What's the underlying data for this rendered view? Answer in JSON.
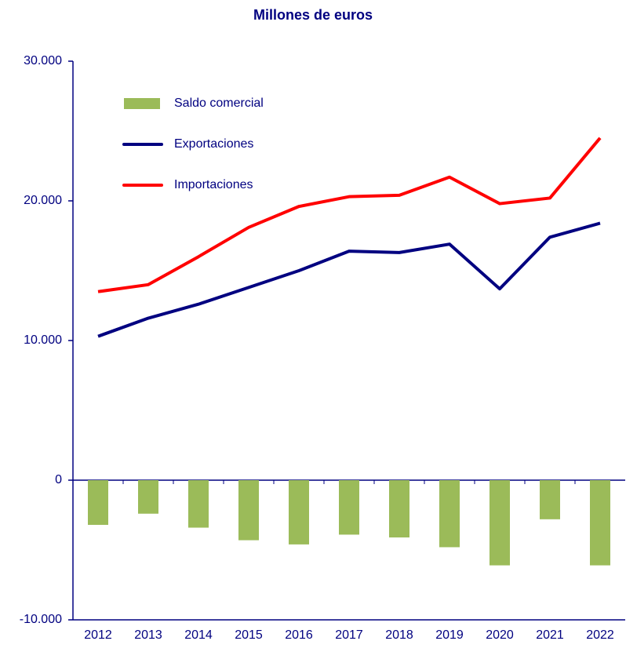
{
  "chart_data": {
    "type": "bar-line",
    "title": "Millones de euros",
    "categories": [
      "2012",
      "2013",
      "2014",
      "2015",
      "2016",
      "2017",
      "2018",
      "2019",
      "2020",
      "2021",
      "2022"
    ],
    "series": [
      {
        "name": "Saldo comercial",
        "type": "bar",
        "color": "#9bbb59",
        "values": [
          -3200,
          -2400,
          -3400,
          -4300,
          -4600,
          -3900,
          -4100,
          -4800,
          -6100,
          -2800,
          -6100
        ]
      },
      {
        "name": "Exportaciones",
        "type": "line",
        "color": "#000080",
        "values": [
          10300,
          11600,
          12600,
          13800,
          15000,
          16400,
          16300,
          16900,
          13700,
          17400,
          18400
        ]
      },
      {
        "name": "Importaciones",
        "type": "line",
        "color": "#ff0000",
        "values": [
          13500,
          14000,
          16000,
          18100,
          19600,
          20300,
          20400,
          21700,
          19800,
          20200,
          24500
        ]
      }
    ],
    "ylim": [
      -10000,
      30000
    ],
    "yticks": [
      {
        "value": -10000,
        "label": "-10.000"
      },
      0,
      {
        "value": 10000,
        "label": "10.000"
      },
      {
        "value": 20000,
        "label": "20.000"
      },
      {
        "value": 30000,
        "label": "30.000"
      }
    ],
    "legend": "upper left"
  }
}
